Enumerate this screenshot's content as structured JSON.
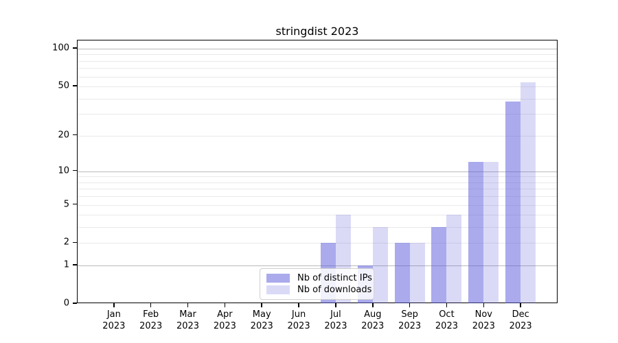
{
  "title": "stringdist 2023",
  "chart_data": {
    "type": "bar",
    "scale": "log1p",
    "title": "stringdist 2023",
    "categories": [
      "Jan",
      "Feb",
      "Mar",
      "Apr",
      "May",
      "Jun",
      "Jul",
      "Aug",
      "Sep",
      "Oct",
      "Nov",
      "Dec"
    ],
    "category_year": "2023",
    "series": [
      {
        "name": "Nb of distinct IPs",
        "color": "rgba(85,85,220,0.50)",
        "values": [
          0,
          0,
          0,
          0,
          0,
          0,
          2,
          1,
          2,
          3,
          12,
          38
        ]
      },
      {
        "name": "Nb of downloads",
        "color": "rgba(85,85,220,0.22)",
        "values": [
          0,
          0,
          0,
          0,
          0,
          0,
          4,
          3,
          2,
          4,
          12,
          54
        ]
      }
    ],
    "yticks": [
      0,
      1,
      2,
      5,
      10,
      20,
      50,
      100
    ],
    "ylim": [
      0,
      116
    ],
    "grid": {
      "orientation": "horizontal",
      "major_values": [
        1,
        10,
        100
      ],
      "minor_values": [
        2,
        3,
        4,
        5,
        6,
        7,
        8,
        9,
        20,
        30,
        40,
        50,
        60,
        70,
        80,
        90
      ],
      "major_color": "#b9b9b9",
      "minor_color": "#e9e9e9"
    },
    "legend": {
      "position": "lower center"
    }
  },
  "colors": {
    "background": "#ffffff",
    "axis": "#000000",
    "text": "#000000"
  }
}
